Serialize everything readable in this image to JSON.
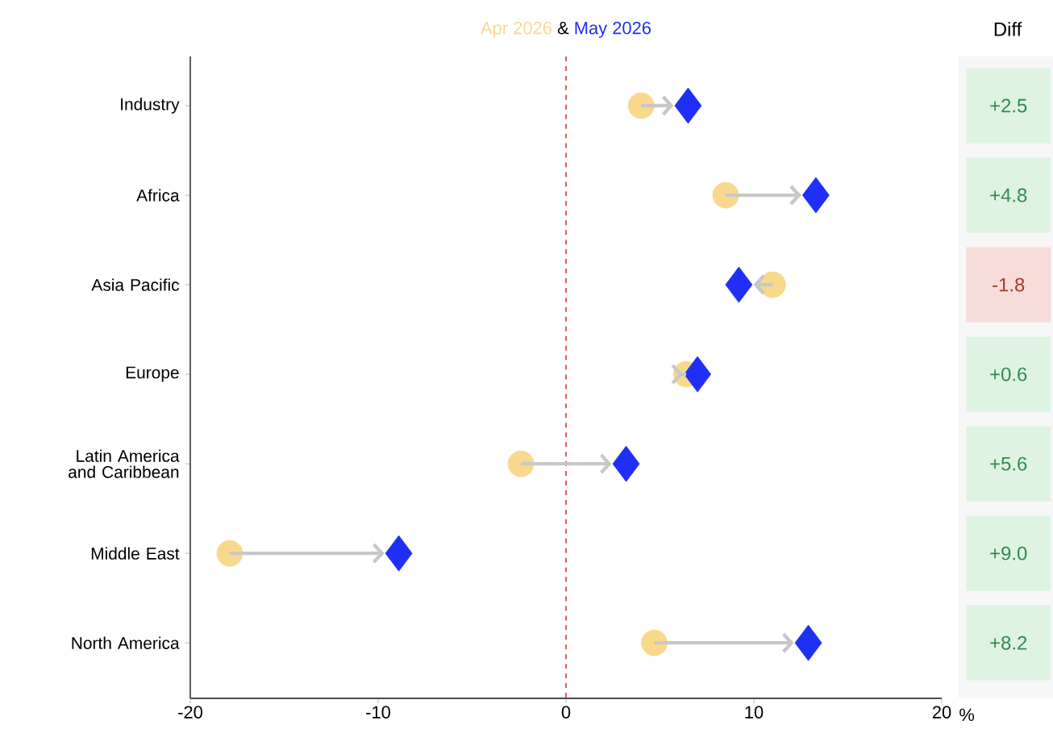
{
  "chart_data": {
    "type": "scatter",
    "categories": [
      "Industry",
      "Africa",
      "Asia Pacific",
      "Europe",
      "Latin America and Caribbean",
      "Middle East",
      "North America"
    ],
    "series": [
      {
        "name": "Apr 2026",
        "color": "#f8d98c",
        "marker": "circle",
        "values": [
          4.0,
          8.5,
          11.0,
          6.4,
          -2.4,
          -17.9,
          4.7
        ]
      },
      {
        "name": "May 2026",
        "color": "#1f2ff5",
        "marker": "diamond",
        "values": [
          6.5,
          13.3,
          9.2,
          7.0,
          3.2,
          -8.9,
          12.9
        ]
      }
    ],
    "orientation": "horizontal",
    "xlim": [
      -20,
      20
    ],
    "xticks": [
      -20,
      -10,
      0,
      10,
      20
    ],
    "xlabel": "%",
    "ref_lines": [
      {
        "axis": "x",
        "value": 0,
        "color": "#e04a45",
        "line_style": "dashed"
      }
    ],
    "annotations": [
      "&",
      "Diff",
      "+2.5",
      "+4.8",
      "-1.8",
      "+0.6",
      "+5.6",
      "+9.0",
      "+8.2"
    ]
  }
}
